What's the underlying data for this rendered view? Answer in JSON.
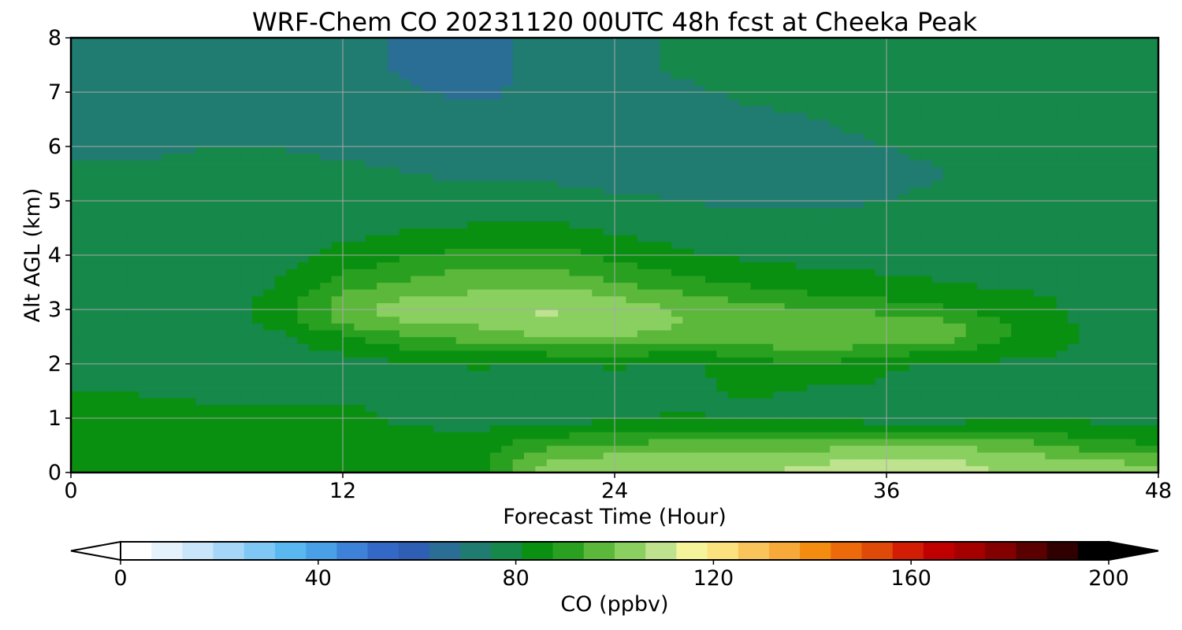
{
  "chart_data": {
    "type": "heatmap",
    "title": "WRF-Chem CO  20231120 00UTC 48h fcst at Cheeka Peak",
    "xlabel": "Forecast Time (Hour)",
    "ylabel": "Alt AGL (km)",
    "xlim": [
      0,
      48
    ],
    "ylim": [
      0,
      8
    ],
    "xticks": [
      0,
      12,
      24,
      36,
      48
    ],
    "yticks": [
      0,
      1,
      2,
      3,
      4,
      5,
      6,
      7,
      8
    ],
    "grid": true,
    "colorbar": {
      "label": "CO  (ppbv)",
      "min": 0,
      "max": 200,
      "ticks": [
        0,
        40,
        80,
        120,
        160,
        200
      ],
      "extend": "both",
      "colors": [
        "#ffffff",
        "#e6f2fb",
        "#c8e5fa",
        "#a5d6f8",
        "#7fc8f6",
        "#5ab8f0",
        "#4aa0e6",
        "#3d82d8",
        "#3468c6",
        "#2f5fb4",
        "#2a6e96",
        "#207c70",
        "#15884a",
        "#0a9010",
        "#2aa020",
        "#5cb83a",
        "#8ad060",
        "#bfe28e",
        "#f6f49a",
        "#fce27e",
        "#f9c55a",
        "#f7aa3a",
        "#f48c10",
        "#ec6a0a",
        "#e04a08",
        "#d21c04",
        "#c00000",
        "#a40000",
        "#820000",
        "#5a0000",
        "#300000",
        "#000000"
      ]
    },
    "x": [
      0,
      3,
      6,
      9,
      12,
      15,
      18,
      21,
      24,
      27,
      30,
      33,
      36,
      39,
      42,
      45,
      48
    ],
    "y": [
      0,
      0.25,
      0.5,
      1,
      1.5,
      2,
      2.5,
      2.75,
      3,
      3.25,
      3.5,
      4,
      4.5,
      5,
      5.5,
      6,
      6.5,
      7,
      7.5,
      8
    ],
    "z": [
      [
        84,
        85,
        85,
        86,
        86,
        85,
        86,
        103,
        104,
        105,
        106,
        108,
        112,
        110,
        104,
        102,
        101
      ],
      [
        84,
        85,
        85,
        86,
        86,
        85,
        86,
        100,
        102,
        103,
        104,
        105,
        107,
        106,
        103,
        100,
        99
      ],
      [
        84,
        84,
        84,
        85,
        85,
        84,
        85,
        92,
        95,
        96,
        97,
        98,
        99,
        99,
        96,
        90,
        88
      ],
      [
        83,
        83,
        83,
        83,
        83,
        80,
        78,
        78,
        80,
        82,
        80,
        80,
        78,
        78,
        82,
        80,
        80
      ],
      [
        81,
        81,
        80,
        80,
        80,
        80,
        79,
        78,
        79,
        80,
        82,
        80,
        80,
        78,
        76,
        78,
        80
      ],
      [
        79,
        79,
        79,
        79,
        79,
        80,
        82,
        80,
        82,
        79,
        85,
        88,
        82,
        80,
        80,
        80,
        81
      ],
      [
        79,
        79,
        79,
        80,
        85,
        94,
        96,
        100,
        100,
        97,
        98,
        99,
        99,
        96,
        86,
        80,
        80
      ],
      [
        79,
        79,
        79,
        82,
        95,
        100,
        101,
        106,
        104,
        100,
        99,
        100,
        98,
        95,
        85,
        80,
        80
      ],
      [
        79,
        79,
        79,
        83,
        98,
        103,
        104,
        107,
        104,
        99,
        96,
        94,
        92,
        88,
        83,
        80,
        80
      ],
      [
        79,
        79,
        79,
        82,
        95,
        100,
        101,
        104,
        100,
        95,
        91,
        88,
        86,
        84,
        82,
        80,
        80
      ],
      [
        79,
        79,
        79,
        81,
        90,
        95,
        98,
        98,
        94,
        90,
        86,
        84,
        83,
        81,
        80,
        79,
        79
      ],
      [
        78,
        78,
        78,
        79,
        83,
        87,
        90,
        90,
        86,
        82,
        80,
        79,
        78,
        78,
        78,
        78,
        78
      ],
      [
        78,
        78,
        78,
        78,
        79,
        81,
        82,
        83,
        80,
        78,
        77,
        77,
        77,
        77,
        77,
        77,
        78
      ],
      [
        77,
        77,
        77,
        77,
        77,
        77,
        77,
        77,
        76,
        75,
        74,
        74,
        75,
        76,
        76,
        77,
        77
      ],
      [
        76,
        76,
        76,
        76,
        76,
        75,
        74,
        74,
        73,
        73,
        73,
        74,
        74,
        75,
        76,
        76,
        77
      ],
      [
        74,
        74,
        75,
        75,
        74,
        73,
        72,
        72,
        73,
        73,
        73,
        74,
        75,
        76,
        77,
        77,
        77
      ],
      [
        73,
        73,
        74,
        74,
        73,
        71,
        70,
        71,
        72,
        73,
        74,
        75,
        76,
        77,
        77,
        78,
        78
      ],
      [
        73,
        72,
        72,
        72,
        71,
        69,
        68,
        70,
        72,
        74,
        76,
        76,
        77,
        77,
        78,
        79,
        79
      ],
      [
        74,
        73,
        72,
        71,
        70,
        68,
        67,
        70,
        73,
        76,
        77,
        77,
        77,
        77,
        78,
        80,
        80
      ],
      [
        74,
        73,
        72,
        71,
        70,
        68,
        67,
        70,
        73,
        76,
        77,
        77,
        77,
        77,
        78,
        81,
        80
      ]
    ]
  }
}
